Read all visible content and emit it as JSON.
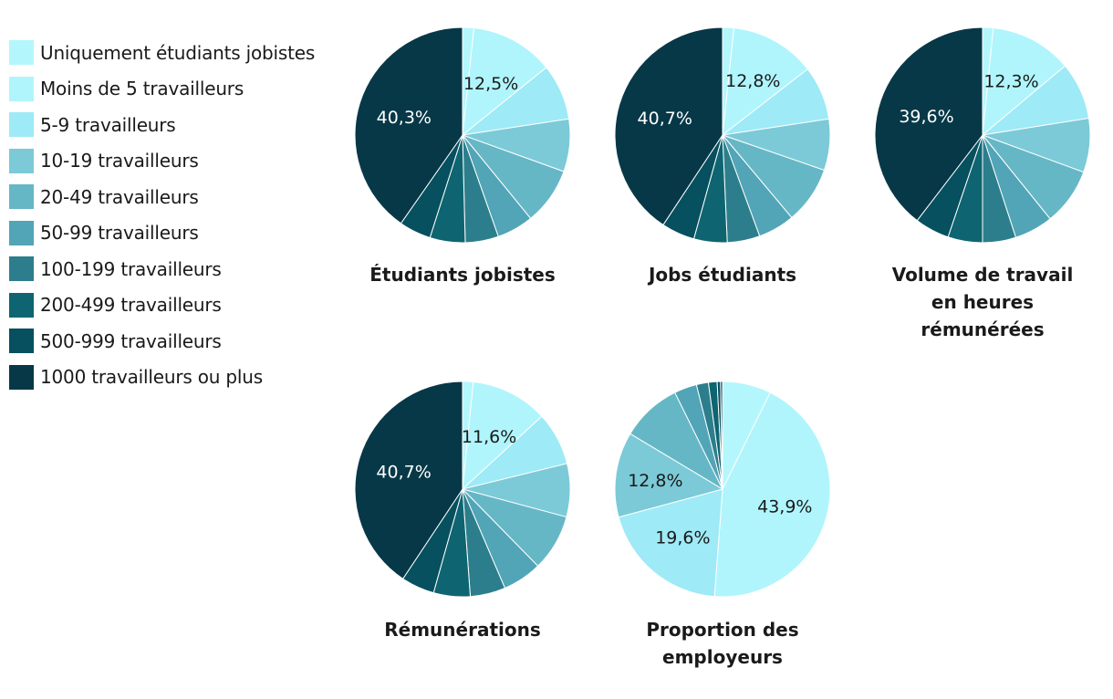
{
  "colors": [
    "#B3F7FC",
    "#B0F5FC",
    "#9EEAF6",
    "#7CCAD8",
    "#66B7C6",
    "#51A5B7",
    "#2D7E8C",
    "#0E6571",
    "#06505F",
    "#073847"
  ],
  "legend": {
    "items": [
      "Uniquement étudiants jobistes",
      "Moins de 5 travailleurs",
      "5-9 travailleurs",
      "10-19 travailleurs",
      "20-49 travailleurs",
      "50-99 travailleurs",
      "100-199 travailleurs",
      "200-499 travailleurs",
      "500-999 travailleurs",
      "1000 travailleurs ou plus"
    ]
  },
  "chart_data": [
    {
      "type": "pie",
      "title": [
        "Étudiants jobistes"
      ],
      "categories": [
        "Uniquement étudiants jobistes",
        "Moins de 5 travailleurs",
        "5-9 travailleurs",
        "10-19 travailleurs",
        "20-49 travailleurs",
        "50-99 travailleurs",
        "100-199 travailleurs",
        "200-499 travailleurs",
        "500-999 travailleurs",
        "1000 travailleurs ou plus"
      ],
      "values": [
        1.7,
        12.5,
        8.4,
        7.9,
        8.6,
        5.5,
        5.0,
        5.3,
        4.8,
        40.3
      ],
      "labels": [
        {
          "index": 1,
          "text": "12,5%",
          "color": "#1a1a1a"
        },
        {
          "index": 9,
          "text": "40,3%",
          "color": "#ffffff"
        }
      ]
    },
    {
      "type": "pie",
      "title": [
        "Jobs étudiants"
      ],
      "categories": [
        "Uniquement étudiants jobistes",
        "Moins de 5 travailleurs",
        "5-9 travailleurs",
        "10-19 travailleurs",
        "20-49 travailleurs",
        "50-99 travailleurs",
        "100-199 travailleurs",
        "200-499 travailleurs",
        "500-999 travailleurs",
        "1000 travailleurs ou plus"
      ],
      "values": [
        1.7,
        12.8,
        8.1,
        7.7,
        8.6,
        5.5,
        4.9,
        5.0,
        5.0,
        40.7
      ],
      "labels": [
        {
          "index": 1,
          "text": "12,8%",
          "color": "#1a1a1a"
        },
        {
          "index": 9,
          "text": "40,7%",
          "color": "#ffffff"
        }
      ]
    },
    {
      "type": "pie",
      "title": [
        "Volume de travail",
        "en heures",
        "rémunérées"
      ],
      "categories": [
        "Uniquement étudiants jobistes",
        "Moins de 5 travailleurs",
        "5-9 travailleurs",
        "10-19 travailleurs",
        "20-49 travailleurs",
        "50-99 travailleurs",
        "100-199 travailleurs",
        "200-499 travailleurs",
        "500-999 travailleurs",
        "1000 travailleurs ou plus"
      ],
      "values": [
        1.6,
        12.3,
        8.6,
        8.1,
        8.6,
        5.8,
        5.0,
        5.2,
        5.2,
        39.6
      ],
      "labels": [
        {
          "index": 1,
          "text": "12,3%",
          "color": "#1a1a1a"
        },
        {
          "index": 9,
          "text": "39,6%",
          "color": "#ffffff"
        }
      ]
    },
    {
      "type": "pie",
      "title": [
        "Rémunérations"
      ],
      "categories": [
        "Uniquement étudiants jobistes",
        "Moins de 5 travailleurs",
        "5-9 travailleurs",
        "10-19 travailleurs",
        "20-49 travailleurs",
        "50-99 travailleurs",
        "100-199 travailleurs",
        "200-499 travailleurs",
        "500-999 travailleurs",
        "1000 travailleurs ou plus"
      ],
      "values": [
        1.6,
        11.6,
        8.0,
        8.0,
        8.5,
        5.9,
        5.3,
        5.5,
        5.0,
        40.7
      ],
      "labels": [
        {
          "index": 1,
          "text": "11,6%",
          "color": "#1a1a1a"
        },
        {
          "index": 9,
          "text": "40,7%",
          "color": "#ffffff"
        }
      ]
    },
    {
      "type": "pie",
      "title": [
        "Proportion des",
        "employeurs"
      ],
      "categories": [
        "Uniquement étudiants jobistes",
        "Moins de 5 travailleurs",
        "5-9 travailleurs",
        "10-19 travailleurs",
        "20-49 travailleurs",
        "50-99 travailleurs",
        "100-199 travailleurs",
        "200-499 travailleurs",
        "500-999 travailleurs",
        "1000 travailleurs ou plus"
      ],
      "values": [
        7.3,
        43.9,
        19.6,
        12.8,
        9.1,
        3.4,
        1.8,
        1.3,
        0.5,
        0.3
      ],
      "labels": [
        {
          "index": 1,
          "text": "43,9%",
          "color": "#1a1a1a"
        },
        {
          "index": 2,
          "text": "19,6%",
          "color": "#1a1a1a"
        },
        {
          "index": 3,
          "text": "12,8%",
          "color": "#1a1a1a"
        }
      ]
    }
  ]
}
